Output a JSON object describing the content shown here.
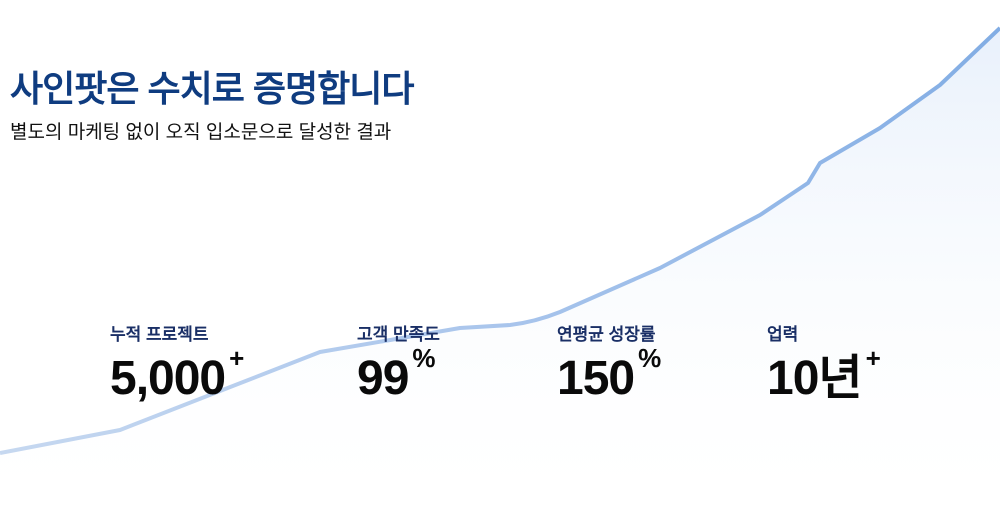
{
  "header": {
    "title": "사인팟은 수치로 증명합니다",
    "subtitle": "별도의 마케팅 없이 오직 입소문으로 달성한 결과"
  },
  "stats": [
    {
      "label": "누적 프로젝트",
      "value": "5,000",
      "suffix": "+"
    },
    {
      "label": "고객 만족도",
      "value": "99",
      "suffix": "%"
    },
    {
      "label": "연평균 성장률",
      "value": "150",
      "suffix": "%"
    },
    {
      "label": "업력",
      "value": "10년",
      "suffix": "+"
    }
  ],
  "colors": {
    "title": "#0f3c80",
    "curve": "#8db4e6",
    "label": "#1a2f66"
  },
  "decoration": {
    "type": "growth-curve"
  }
}
